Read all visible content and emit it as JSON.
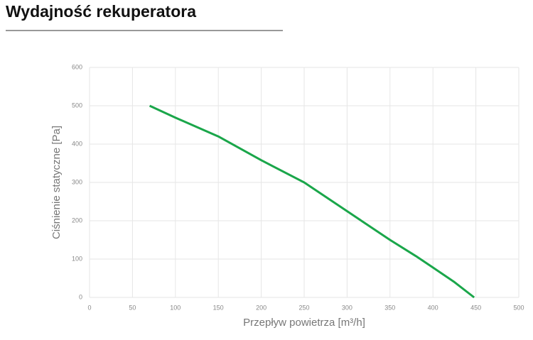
{
  "chart_data": {
    "type": "line",
    "title": "Wydajność rekuperatora",
    "x_label": "Przepływ powietrza [m³/h]",
    "y_label": "Ciśnienie statyczne [Pa]",
    "x": [
      70,
      100,
      150,
      200,
      250,
      300,
      350,
      380,
      400,
      425,
      448
    ],
    "series": [
      {
        "name": "Wydajność",
        "color": "#1aa64a",
        "values": [
          500,
          469,
          420,
          358,
          300,
          225,
          150,
          108,
          78,
          40,
          0
        ]
      }
    ],
    "xlim": [
      0,
      500
    ],
    "xticks": [
      0,
      50,
      100,
      150,
      200,
      250,
      300,
      350,
      400,
      450,
      500
    ],
    "ylim": [
      0,
      600
    ],
    "yticks": [
      0,
      100,
      200,
      300,
      400,
      500,
      600
    ],
    "grid": true
  }
}
